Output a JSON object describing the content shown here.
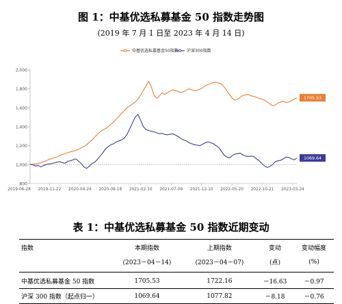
{
  "figure": {
    "title": "图 1：中基优选私募基金 50 指数走势图",
    "subtitle": "(2019 年 7 月 1 日至 2023 年 4 月 14 日)"
  },
  "chart_data": {
    "type": "line",
    "title": "图 1：中基优选私募基金 50 指数走势图",
    "subtitle": "(2019 年 7 月 1 日至 2023 年 4 月 14 日)",
    "legend_position": "top-center",
    "grid": false,
    "baseline": 1000,
    "ylim": [
      800,
      2000
    ],
    "yticks": [
      800,
      1000,
      1200,
      1400,
      1600,
      1800,
      2000
    ],
    "ytick_labels": [
      "800",
      "1,000",
      "1,200",
      "1,400",
      "1,600",
      "1,800",
      "2,000"
    ],
    "xticks": [
      "2019-06-28",
      "2019-11-22",
      "2020-04-24",
      "2020-09-18",
      "2021-02-10",
      "2021-07-09",
      "2021-12-10",
      "2022-05-20",
      "2022-10-21",
      "2023-03-24"
    ],
    "end_labels": [
      "1705.53",
      "1069.64"
    ],
    "series": [
      {
        "name": "中基优选私募基金50指数",
        "color": "#ED7D31",
        "values": [
          1000,
          1003,
          1008,
          1012,
          1020,
          1030,
          1040,
          1055,
          1062,
          1075,
          1080,
          1095,
          1105,
          1118,
          1125,
          1135,
          1142,
          1150,
          1162,
          1175,
          1190,
          1210,
          1235,
          1260,
          1290,
          1320,
          1345,
          1365,
          1380,
          1400,
          1425,
          1450,
          1480,
          1510,
          1540,
          1570,
          1600,
          1620,
          1640,
          1660,
          1690,
          1730,
          1780,
          1830,
          1880,
          1820,
          1730,
          1700,
          1725,
          1760,
          1740,
          1760,
          1775,
          1790,
          1780,
          1770,
          1760,
          1770,
          1785,
          1800,
          1790,
          1780,
          1785,
          1795,
          1810,
          1830,
          1845,
          1855,
          1865,
          1870,
          1860,
          1850,
          1820,
          1780,
          1740,
          1700,
          1680,
          1690,
          1710,
          1730,
          1735,
          1738,
          1725,
          1720,
          1710,
          1700,
          1690,
          1680,
          1660,
          1640,
          1620,
          1630,
          1650,
          1660,
          1670,
          1655,
          1660,
          1675,
          1690,
          1705.53
        ]
      },
      {
        "name": "沪深300指数",
        "color": "#3B3B9A",
        "values": [
          1000,
          998,
          985,
          990,
          975,
          990,
          1000,
          1005,
          1010,
          1018,
          1025,
          1030,
          1020,
          1015,
          1035,
          1040,
          1050,
          1060,
          1035,
          1010,
          975,
          960,
          985,
          1010,
          1025,
          1055,
          1090,
          1125,
          1165,
          1190,
          1210,
          1220,
          1240,
          1250,
          1260,
          1280,
          1320,
          1380,
          1440,
          1500,
          1530,
          1470,
          1400,
          1370,
          1360,
          1350,
          1345,
          1335,
          1325,
          1330,
          1318,
          1315,
          1320,
          1325,
          1310,
          1295,
          1275,
          1260,
          1250,
          1230,
          1220,
          1210,
          1205,
          1200,
          1215,
          1230,
          1240,
          1230,
          1220,
          1200,
          1180,
          1140,
          1100,
          1080,
          1070,
          1095,
          1110,
          1115,
          1120,
          1100,
          1090,
          1085,
          1090,
          1085,
          1060,
          1040,
          1010,
          985,
          970,
          980,
          1000,
          1030,
          1040,
          1045,
          1060,
          1080,
          1075,
          1060,
          1050,
          1069.64
        ]
      }
    ]
  },
  "table": {
    "title": "表 1：中基优选私募基金 50 指数近期变动",
    "headers_top": [
      "指数",
      "本期指数",
      "上期指数",
      "变动",
      "变动幅度"
    ],
    "headers_bottom": [
      "",
      "(2023－04－14)",
      "(2023－04－07)",
      "(点)",
      "(%)"
    ],
    "rows": [
      [
        "中基优选私募基金 50 指数",
        "1705.53",
        "1722.16",
        "－16.63",
        "－0.97"
      ],
      [
        "沪深 300 指数（起点归一）",
        "1069.64",
        "1077.82",
        "－8.18",
        "－0.76"
      ]
    ]
  }
}
